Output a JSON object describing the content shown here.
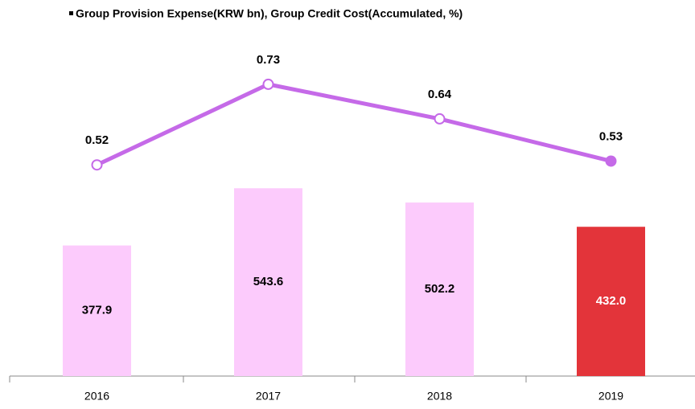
{
  "chart_data": {
    "type": "bar_line",
    "title": "Group Provision Expense(KRW bn), Group Credit Cost(Accumulated, %)",
    "categories": [
      "2016",
      "2017",
      "2018",
      "2019"
    ],
    "series": [
      {
        "name": "Group Provision Expense(KRW bn)",
        "type": "bar",
        "colors": [
          "#fccbfc",
          "#fccbfc",
          "#fccbfc",
          "#e3343a"
        ],
        "values": [
          377.9,
          543.6,
          502.2,
          432.0
        ],
        "value_labels": [
          "377.9",
          "543.6",
          "502.2",
          "432.0"
        ]
      },
      {
        "name": "Group Credit Cost(Accumulated, %)",
        "type": "line",
        "axis": "y2",
        "color": "#c56ae8",
        "values": [
          0.52,
          0.73,
          0.64,
          0.53
        ],
        "highlight": 3
      }
    ],
    "ylim": [
      0,
      1000
    ],
    "y2lim": [
      -0.03,
      0.87
    ]
  }
}
